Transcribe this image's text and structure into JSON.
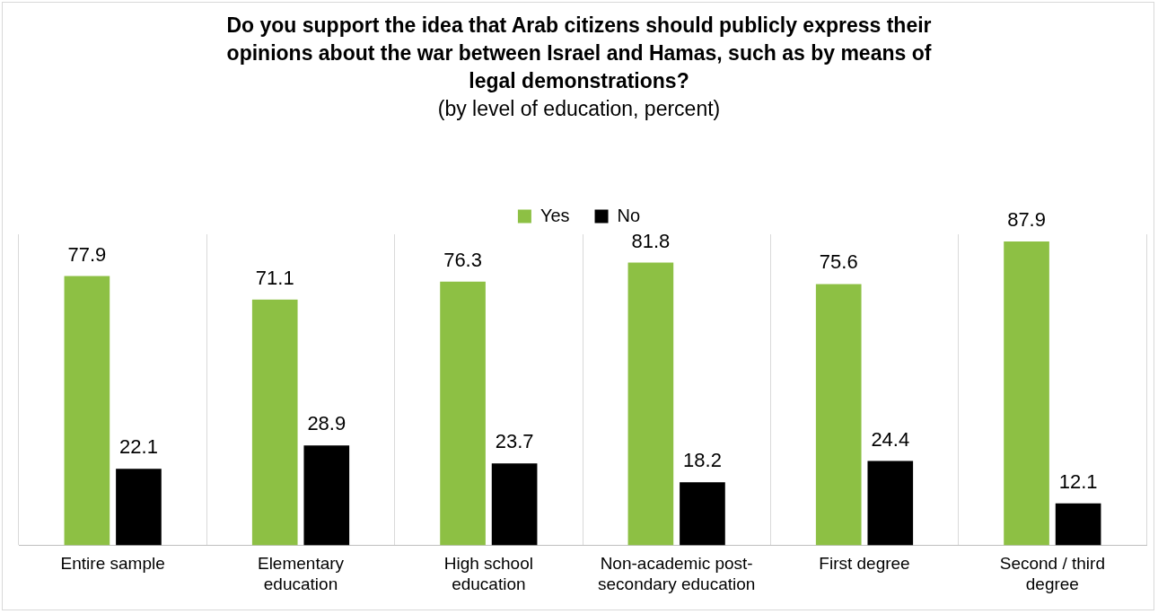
{
  "chart_data": {
    "type": "bar",
    "title": "Do you support the idea that Arab citizens should publicly express their opinions about the war between Israel and Hamas, such as by means of legal demonstrations?",
    "subtitle": "(by level of education, percent)",
    "categories": [
      "Entire sample",
      "Elementary education",
      "High school education",
      "Non-academic post-secondary education",
      "First degree",
      "Second / third degree"
    ],
    "series": [
      {
        "name": "Yes",
        "color": "#8dc044",
        "values": [
          77.9,
          71.1,
          76.3,
          81.8,
          75.6,
          87.9
        ]
      },
      {
        "name": "No",
        "color": "#000000",
        "values": [
          22.1,
          28.9,
          23.7,
          18.2,
          24.4,
          12.1
        ]
      }
    ],
    "relative": false,
    "data_labels": true,
    "grid": "x",
    "legend": "top"
  }
}
